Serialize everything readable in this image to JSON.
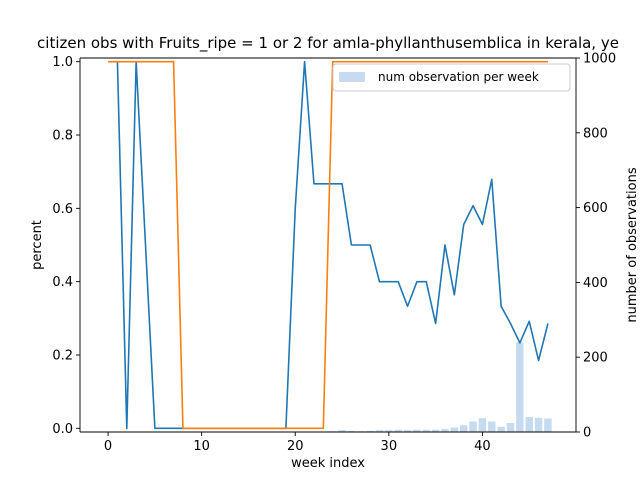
{
  "chart_data": {
    "type": "line",
    "title": "citizen obs with Fruits_ripe = 1 or 2 for amla-phyllanthusemblica in kerala, ye",
    "xlabel": "week index",
    "ylabel": "percent",
    "y2label": "number of observations",
    "xlim": [
      -3,
      50
    ],
    "ylim": [
      -0.01,
      1.01
    ],
    "y2lim": [
      0,
      1000
    ],
    "xticks": [
      0,
      10,
      20,
      30,
      40
    ],
    "yticks": [
      0.0,
      0.2,
      0.4,
      0.6,
      0.8,
      1.0
    ],
    "y2ticks": [
      0,
      200,
      400,
      600,
      800,
      1000
    ],
    "series": [
      {
        "color": "#1f77b4",
        "x": [
          1,
          2,
          3,
          4,
          5,
          6,
          7,
          8,
          9,
          10,
          11,
          12,
          13,
          14,
          15,
          16,
          17,
          18,
          19,
          20,
          21,
          22,
          23,
          24,
          25,
          26,
          27,
          28,
          29,
          30,
          31,
          32,
          33,
          34,
          35,
          36,
          37,
          38,
          39,
          40,
          41,
          42,
          43,
          44,
          45,
          46,
          47
        ],
        "values": [
          1.0,
          0.0,
          1.0,
          0.5,
          0.0,
          0.0,
          0.0,
          0.0,
          0.0,
          0.0,
          0.0,
          0.0,
          0.0,
          0.0,
          0.0,
          0.0,
          0.0,
          0.0,
          0.0,
          0.6,
          1.0,
          0.667,
          0.667,
          0.667,
          0.667,
          0.5,
          0.5,
          0.5,
          0.4,
          0.4,
          0.4,
          0.333,
          0.4,
          0.4,
          0.286,
          0.5,
          0.364,
          0.556,
          0.607,
          0.556,
          0.679,
          0.333,
          0.286,
          0.233,
          0.292,
          0.185,
          0.286
        ]
      },
      {
        "color": "#ff7f0e",
        "x": [
          0,
          1,
          2,
          3,
          4,
          5,
          6,
          7,
          8,
          9,
          10,
          11,
          12,
          13,
          14,
          15,
          16,
          17,
          18,
          19,
          20,
          21,
          22,
          23,
          24,
          25,
          26,
          27,
          28,
          29,
          30,
          31,
          32,
          33,
          34,
          35,
          36,
          37,
          38,
          39,
          40,
          41,
          42,
          43,
          44,
          45,
          46,
          47
        ],
        "values": [
          1,
          1,
          1,
          1,
          1,
          1,
          1,
          1,
          0,
          0,
          0,
          0,
          0,
          0,
          0,
          0,
          0,
          0,
          0,
          0,
          0,
          0,
          0,
          0,
          1,
          1,
          1,
          1,
          1,
          1,
          1,
          1,
          1,
          1,
          1,
          1,
          1,
          1,
          1,
          1,
          1,
          1,
          1,
          1,
          1,
          1,
          1,
          1
        ]
      }
    ],
    "bars": {
      "name": "num observation per week",
      "color": "#c6dbef",
      "x": [
        23,
        24,
        25,
        26,
        27,
        28,
        29,
        30,
        31,
        32,
        33,
        34,
        35,
        36,
        37,
        38,
        39,
        40,
        41,
        42,
        43,
        44,
        45,
        46,
        47
      ],
      "values": [
        1,
        2,
        5,
        3,
        2,
        3,
        5,
        5,
        6,
        5,
        6,
        6,
        6,
        8,
        12,
        18,
        28,
        37,
        28,
        14,
        24,
        240,
        40,
        38,
        36
      ]
    },
    "legend": {
      "location": "top-right",
      "entries": [
        "num observation per week"
      ]
    }
  }
}
